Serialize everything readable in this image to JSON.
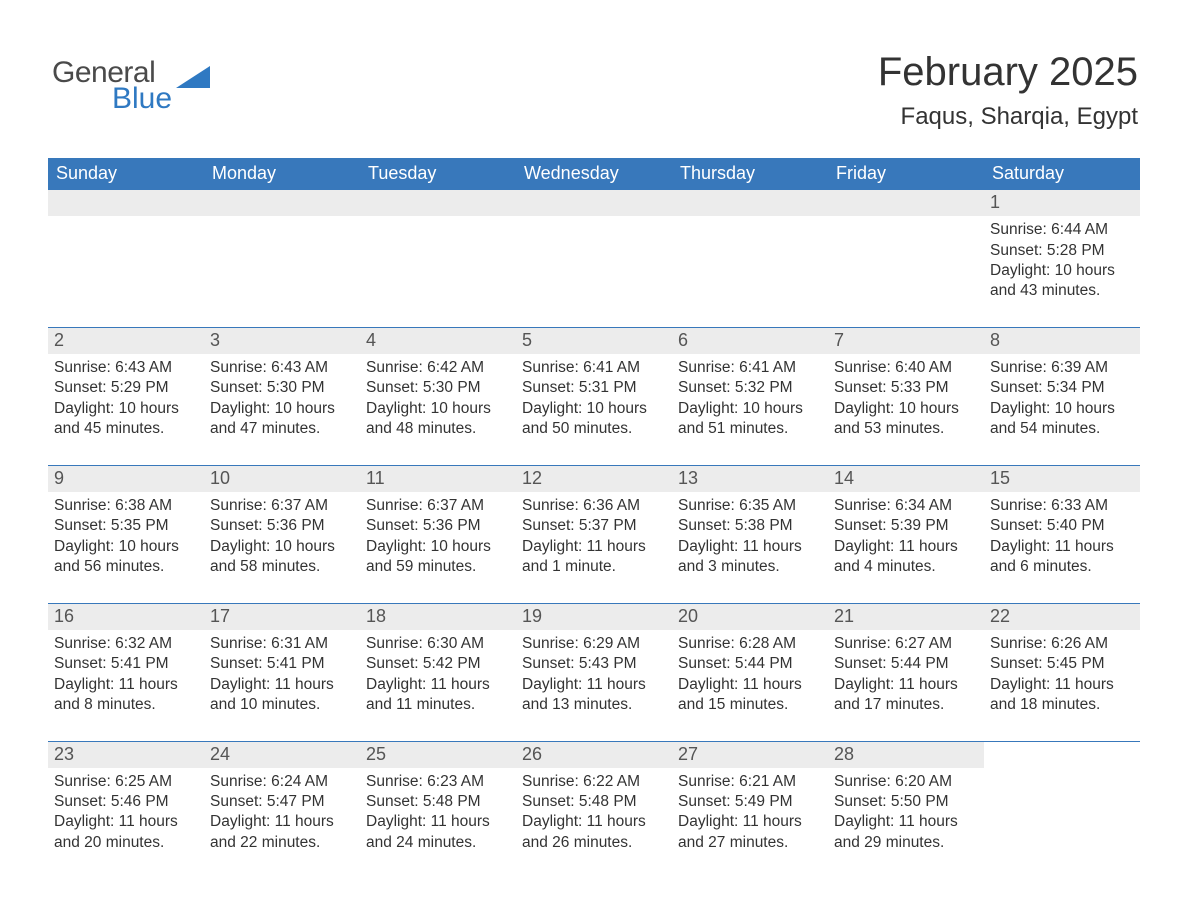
{
  "brand": {
    "logo_word1": "General",
    "logo_word2": "Blue",
    "word1_color": "#4a4a4a",
    "word2_color": "#2f79c2",
    "icon_color": "#2f79c2"
  },
  "header": {
    "month_title": "February 2025",
    "location": "Faqus, Sharqia, Egypt",
    "title_color": "#333333",
    "location_color": "#333333"
  },
  "calendar": {
    "header_bg": "#3878bb",
    "header_text_color": "#ffffff",
    "week_border_color": "#3878bb",
    "daynum_bg": "#ececec",
    "daynum_color": "#555555",
    "body_text_color": "#333333",
    "weekdays": [
      "Sunday",
      "Monday",
      "Tuesday",
      "Wednesday",
      "Thursday",
      "Friday",
      "Saturday"
    ],
    "weeks": [
      [
        null,
        null,
        null,
        null,
        null,
        null,
        {
          "n": "1",
          "sunrise": "Sunrise: 6:44 AM",
          "sunset": "Sunset: 5:28 PM",
          "daylight1": "Daylight: 10 hours",
          "daylight2": "and 43 minutes."
        }
      ],
      [
        {
          "n": "2",
          "sunrise": "Sunrise: 6:43 AM",
          "sunset": "Sunset: 5:29 PM",
          "daylight1": "Daylight: 10 hours",
          "daylight2": "and 45 minutes."
        },
        {
          "n": "3",
          "sunrise": "Sunrise: 6:43 AM",
          "sunset": "Sunset: 5:30 PM",
          "daylight1": "Daylight: 10 hours",
          "daylight2": "and 47 minutes."
        },
        {
          "n": "4",
          "sunrise": "Sunrise: 6:42 AM",
          "sunset": "Sunset: 5:30 PM",
          "daylight1": "Daylight: 10 hours",
          "daylight2": "and 48 minutes."
        },
        {
          "n": "5",
          "sunrise": "Sunrise: 6:41 AM",
          "sunset": "Sunset: 5:31 PM",
          "daylight1": "Daylight: 10 hours",
          "daylight2": "and 50 minutes."
        },
        {
          "n": "6",
          "sunrise": "Sunrise: 6:41 AM",
          "sunset": "Sunset: 5:32 PM",
          "daylight1": "Daylight: 10 hours",
          "daylight2": "and 51 minutes."
        },
        {
          "n": "7",
          "sunrise": "Sunrise: 6:40 AM",
          "sunset": "Sunset: 5:33 PM",
          "daylight1": "Daylight: 10 hours",
          "daylight2": "and 53 minutes."
        },
        {
          "n": "8",
          "sunrise": "Sunrise: 6:39 AM",
          "sunset": "Sunset: 5:34 PM",
          "daylight1": "Daylight: 10 hours",
          "daylight2": "and 54 minutes."
        }
      ],
      [
        {
          "n": "9",
          "sunrise": "Sunrise: 6:38 AM",
          "sunset": "Sunset: 5:35 PM",
          "daylight1": "Daylight: 10 hours",
          "daylight2": "and 56 minutes."
        },
        {
          "n": "10",
          "sunrise": "Sunrise: 6:37 AM",
          "sunset": "Sunset: 5:36 PM",
          "daylight1": "Daylight: 10 hours",
          "daylight2": "and 58 minutes."
        },
        {
          "n": "11",
          "sunrise": "Sunrise: 6:37 AM",
          "sunset": "Sunset: 5:36 PM",
          "daylight1": "Daylight: 10 hours",
          "daylight2": "and 59 minutes."
        },
        {
          "n": "12",
          "sunrise": "Sunrise: 6:36 AM",
          "sunset": "Sunset: 5:37 PM",
          "daylight1": "Daylight: 11 hours",
          "daylight2": "and 1 minute."
        },
        {
          "n": "13",
          "sunrise": "Sunrise: 6:35 AM",
          "sunset": "Sunset: 5:38 PM",
          "daylight1": "Daylight: 11 hours",
          "daylight2": "and 3 minutes."
        },
        {
          "n": "14",
          "sunrise": "Sunrise: 6:34 AM",
          "sunset": "Sunset: 5:39 PM",
          "daylight1": "Daylight: 11 hours",
          "daylight2": "and 4 minutes."
        },
        {
          "n": "15",
          "sunrise": "Sunrise: 6:33 AM",
          "sunset": "Sunset: 5:40 PM",
          "daylight1": "Daylight: 11 hours",
          "daylight2": "and 6 minutes."
        }
      ],
      [
        {
          "n": "16",
          "sunrise": "Sunrise: 6:32 AM",
          "sunset": "Sunset: 5:41 PM",
          "daylight1": "Daylight: 11 hours",
          "daylight2": "and 8 minutes."
        },
        {
          "n": "17",
          "sunrise": "Sunrise: 6:31 AM",
          "sunset": "Sunset: 5:41 PM",
          "daylight1": "Daylight: 11 hours",
          "daylight2": "and 10 minutes."
        },
        {
          "n": "18",
          "sunrise": "Sunrise: 6:30 AM",
          "sunset": "Sunset: 5:42 PM",
          "daylight1": "Daylight: 11 hours",
          "daylight2": "and 11 minutes."
        },
        {
          "n": "19",
          "sunrise": "Sunrise: 6:29 AM",
          "sunset": "Sunset: 5:43 PM",
          "daylight1": "Daylight: 11 hours",
          "daylight2": "and 13 minutes."
        },
        {
          "n": "20",
          "sunrise": "Sunrise: 6:28 AM",
          "sunset": "Sunset: 5:44 PM",
          "daylight1": "Daylight: 11 hours",
          "daylight2": "and 15 minutes."
        },
        {
          "n": "21",
          "sunrise": "Sunrise: 6:27 AM",
          "sunset": "Sunset: 5:44 PM",
          "daylight1": "Daylight: 11 hours",
          "daylight2": "and 17 minutes."
        },
        {
          "n": "22",
          "sunrise": "Sunrise: 6:26 AM",
          "sunset": "Sunset: 5:45 PM",
          "daylight1": "Daylight: 11 hours",
          "daylight2": "and 18 minutes."
        }
      ],
      [
        {
          "n": "23",
          "sunrise": "Sunrise: 6:25 AM",
          "sunset": "Sunset: 5:46 PM",
          "daylight1": "Daylight: 11 hours",
          "daylight2": "and 20 minutes."
        },
        {
          "n": "24",
          "sunrise": "Sunrise: 6:24 AM",
          "sunset": "Sunset: 5:47 PM",
          "daylight1": "Daylight: 11 hours",
          "daylight2": "and 22 minutes."
        },
        {
          "n": "25",
          "sunrise": "Sunrise: 6:23 AM",
          "sunset": "Sunset: 5:48 PM",
          "daylight1": "Daylight: 11 hours",
          "daylight2": "and 24 minutes."
        },
        {
          "n": "26",
          "sunrise": "Sunrise: 6:22 AM",
          "sunset": "Sunset: 5:48 PM",
          "daylight1": "Daylight: 11 hours",
          "daylight2": "and 26 minutes."
        },
        {
          "n": "27",
          "sunrise": "Sunrise: 6:21 AM",
          "sunset": "Sunset: 5:49 PM",
          "daylight1": "Daylight: 11 hours",
          "daylight2": "and 27 minutes."
        },
        {
          "n": "28",
          "sunrise": "Sunrise: 6:20 AM",
          "sunset": "Sunset: 5:50 PM",
          "daylight1": "Daylight: 11 hours",
          "daylight2": "and 29 minutes."
        },
        null
      ]
    ]
  }
}
